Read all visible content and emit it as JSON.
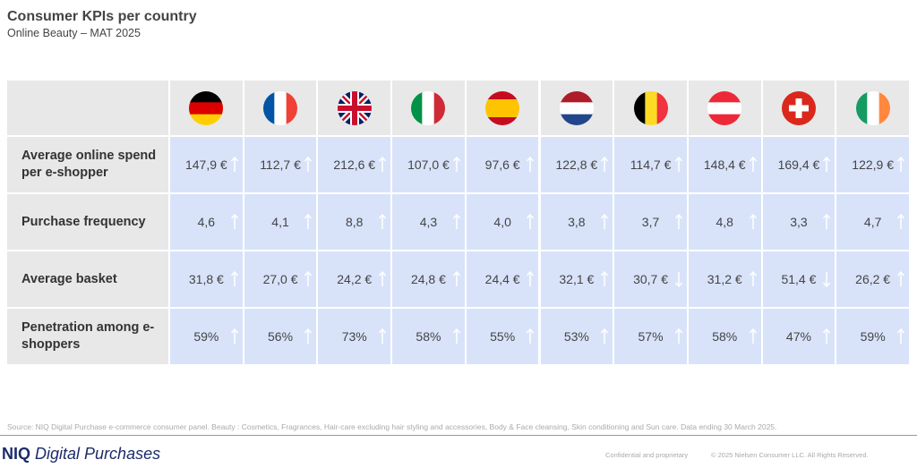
{
  "header": {
    "title": "Consumer KPIs per country",
    "subtitle": "Online Beauty – MAT 2025"
  },
  "table": {
    "rows": [
      {
        "label": "Average online spend per e-shopper",
        "cells": [
          "147,9 €",
          "112,7 €",
          "212,6 €",
          "107,0 €",
          "97,6 €",
          "122,8 €",
          "114,7 €",
          "148,4 €",
          "169,4 €",
          "122,9 €"
        ],
        "trends": [
          "up",
          "up",
          "up",
          "up",
          "up",
          "up",
          "up",
          "up",
          "up",
          "up"
        ]
      },
      {
        "label": "Purchase frequency",
        "cells": [
          "4,6",
          "4,1",
          "8,8",
          "4,3",
          "4,0",
          "3,8",
          "3,7",
          "4,8",
          "3,3",
          "4,7"
        ],
        "trends": [
          "up",
          "up",
          "up",
          "up",
          "up",
          "up",
          "up",
          "up",
          "up",
          "up"
        ]
      },
      {
        "label": "Average basket",
        "cells": [
          "31,8 €",
          "27,0 €",
          "24,2 €",
          "24,8 €",
          "24,4 €",
          "32,1 €",
          "30,7 €",
          "31,2 €",
          "51,4 €",
          "26,2 €"
        ],
        "trends": [
          "up",
          "up",
          "up",
          "up",
          "up",
          "up",
          "down",
          "up",
          "down",
          "up"
        ]
      },
      {
        "label": "Penetration among e-shoppers",
        "cells": [
          "59%",
          "56%",
          "73%",
          "58%",
          "55%",
          "53%",
          "57%",
          "58%",
          "47%",
          "59%"
        ],
        "trends": [
          "up",
          "up",
          "up",
          "up",
          "up",
          "up",
          "up",
          "up",
          "up",
          "up"
        ]
      }
    ]
  },
  "footer": {
    "source": "Source: NIQ Digital Purchase e-commerce consumer panel. Beauty : Cosmetics, Fragrances, Hair-care excluding hair styling and accessories, Body & Face cleansing, Skin conditioning and Sun care. Data ending 30 March 2025.",
    "brand_bold": "NIQ",
    "brand": "Digital Purchases",
    "confidential": "Confidential and proprietary",
    "copyright": "© 2025 Nielsen Consumer LLC. All Rights Reserved."
  }
}
